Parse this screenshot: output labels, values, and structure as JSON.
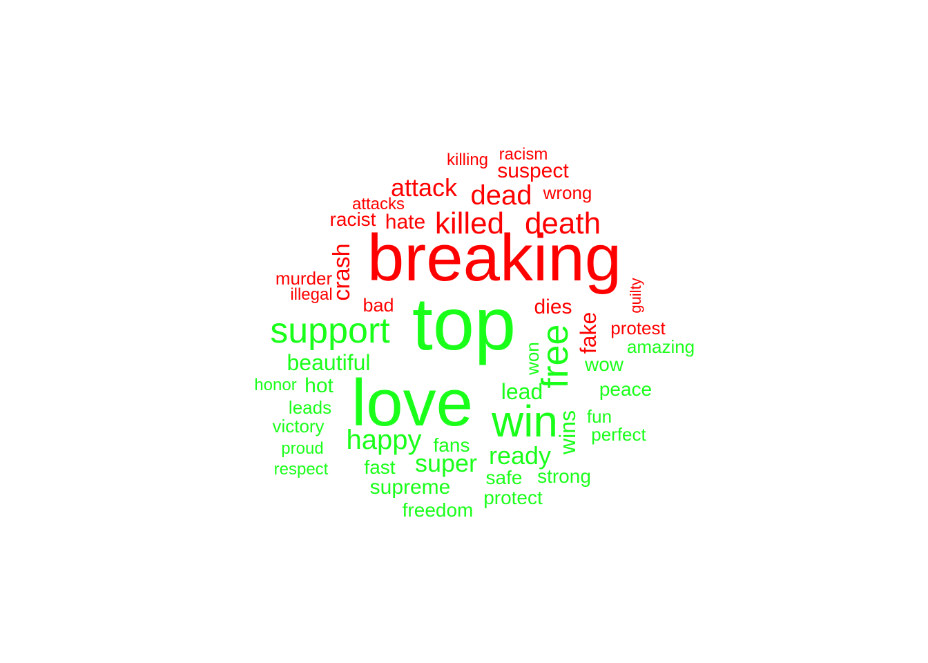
{
  "colors": {
    "negative": "#ff0000",
    "positive": "#1aff1a"
  },
  "words": [
    {
      "text": "breaking",
      "sentiment": "negative"
    },
    {
      "text": "top",
      "sentiment": "positive"
    },
    {
      "text": "love",
      "sentiment": "positive"
    },
    {
      "text": "win",
      "sentiment": "positive"
    },
    {
      "text": "support",
      "sentiment": "positive"
    },
    {
      "text": "free",
      "sentiment": "positive"
    },
    {
      "text": "killed",
      "sentiment": "negative"
    },
    {
      "text": "death",
      "sentiment": "negative"
    },
    {
      "text": "dead",
      "sentiment": "negative"
    },
    {
      "text": "attack",
      "sentiment": "negative"
    },
    {
      "text": "happy",
      "sentiment": "positive"
    },
    {
      "text": "super",
      "sentiment": "positive"
    },
    {
      "text": "ready",
      "sentiment": "positive"
    },
    {
      "text": "beautiful",
      "sentiment": "positive"
    },
    {
      "text": "crash",
      "sentiment": "negative"
    },
    {
      "text": "lead",
      "sentiment": "positive"
    },
    {
      "text": "suspect",
      "sentiment": "negative"
    },
    {
      "text": "dies",
      "sentiment": "negative"
    },
    {
      "text": "fake",
      "sentiment": "negative"
    },
    {
      "text": "wins",
      "sentiment": "positive"
    },
    {
      "text": "hate",
      "sentiment": "negative"
    },
    {
      "text": "racist",
      "sentiment": "negative"
    },
    {
      "text": "murder",
      "sentiment": "negative"
    },
    {
      "text": "supreme",
      "sentiment": "positive"
    },
    {
      "text": "bad",
      "sentiment": "negative"
    },
    {
      "text": "wrong",
      "sentiment": "negative"
    },
    {
      "text": "attacks",
      "sentiment": "negative"
    },
    {
      "text": "racism",
      "sentiment": "negative"
    },
    {
      "text": "killing",
      "sentiment": "negative"
    },
    {
      "text": "illegal",
      "sentiment": "negative"
    },
    {
      "text": "protest",
      "sentiment": "negative"
    },
    {
      "text": "guilty",
      "sentiment": "negative"
    },
    {
      "text": "wow",
      "sentiment": "positive"
    },
    {
      "text": "won",
      "sentiment": "positive"
    },
    {
      "text": "amazing",
      "sentiment": "positive"
    },
    {
      "text": "peace",
      "sentiment": "positive"
    },
    {
      "text": "fun",
      "sentiment": "positive"
    },
    {
      "text": "perfect",
      "sentiment": "positive"
    },
    {
      "text": "fans",
      "sentiment": "positive"
    },
    {
      "text": "fast",
      "sentiment": "positive"
    },
    {
      "text": "safe",
      "sentiment": "positive"
    },
    {
      "text": "strong",
      "sentiment": "positive"
    },
    {
      "text": "protect",
      "sentiment": "positive"
    },
    {
      "text": "freedom",
      "sentiment": "positive"
    },
    {
      "text": "hot",
      "sentiment": "positive"
    },
    {
      "text": "honor",
      "sentiment": "positive"
    },
    {
      "text": "leads",
      "sentiment": "positive"
    },
    {
      "text": "victory",
      "sentiment": "positive"
    },
    {
      "text": "proud",
      "sentiment": "positive"
    },
    {
      "text": "respect",
      "sentiment": "positive"
    }
  ]
}
